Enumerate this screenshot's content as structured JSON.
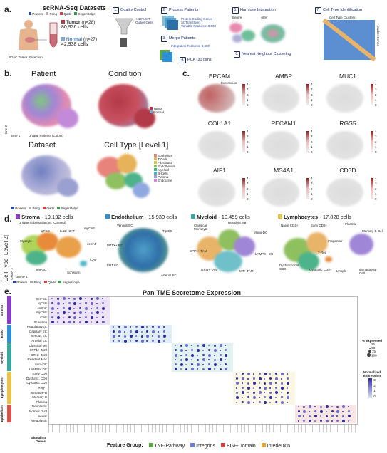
{
  "panels": {
    "a": {
      "letter": "a.",
      "title": "scRNA-Seq Datasets",
      "datasets_legend": [
        "Powers",
        "Peng",
        "Qadir",
        "Segerstolpe"
      ],
      "source_caption": "PDAC Tumor Resection",
      "tumor": {
        "label": "Tumor",
        "n": "(n=28)",
        "cells": "80,936 cells"
      },
      "normal": {
        "label": "Normal",
        "n": "(n=27)",
        "cells": "42,938 cells"
      },
      "steps": [
        {
          "num": "1.",
          "label": "Quality Control"
        },
        {
          "num": "2.",
          "label": "Process Patients"
        },
        {
          "num": "3.",
          "label": "Merge Patients"
        },
        {
          "num": "4.",
          "label": "PCA (30 dims)"
        },
        {
          "num": "5.",
          "label": "Harmony Integration"
        },
        {
          "num": "6.",
          "label": "Nearest Neighbor Clustering"
        },
        {
          "num": "7.",
          "label": "Cell Type Identification"
        }
      ],
      "qc_notes": [
        "< 10% MT",
        "Outlier Cells"
      ],
      "process_notes": [
        "Protein Coding Genes",
        "SCTransform",
        "Variable Features: 8,000"
      ],
      "merge_note": "Integration Features: 8,000",
      "harmony_labels": {
        "before": "Before",
        "after": "After"
      },
      "cluster_label": "Cell Type Clusters",
      "marker_label": "Marker Genes"
    },
    "b": {
      "letter": "b.",
      "titles": [
        "Patient",
        "Condition",
        "Dataset",
        "Cell Type [Level 1]"
      ],
      "axes": {
        "x": "tsne 1",
        "y": "tsne 2"
      },
      "patient_note": "Unique Patients (Colors)",
      "condition_legend": [
        {
          "label": "Tumor",
          "color": "#b23a48"
        },
        {
          "label": "Normal",
          "color": "#7fa7d6"
        }
      ],
      "dataset_legend": [
        "Powers",
        "Peng",
        "Qadir",
        "Segerstolpe"
      ],
      "celltype_legend": [
        {
          "label": "Epithelium",
          "color": "#e8837b"
        },
        {
          "label": "T-Cells",
          "color": "#e6b25a"
        },
        {
          "label": "Fibroblast",
          "color": "#c9c34e"
        },
        {
          "label": "Endothelium",
          "color": "#8fc05f"
        },
        {
          "label": "Myeloid",
          "color": "#4db38a"
        },
        {
          "label": "B-Cells",
          "color": "#4bb6c9"
        },
        {
          "label": "Plasma",
          "color": "#8fa8e0"
        },
        {
          "label": "Endocrine",
          "color": "#d58ad8"
        }
      ]
    },
    "c": {
      "letter": "c.",
      "genes": [
        "EPCAM",
        "AMBP",
        "MUC1",
        "COL1A1",
        "PECAM1",
        "RGS5",
        "AIF1",
        "MS4A1",
        "CD3D"
      ],
      "expression_label": "Expression",
      "ticks": [
        "4",
        "3",
        "2",
        "1",
        "0"
      ]
    },
    "d": {
      "letter": "d.",
      "ylabel": "Cell Type [Level 2]",
      "xaxis": "UMAP 1",
      "yaxis": "UMAP 2",
      "dataset_legend": [
        "Powers",
        "Peng",
        "Qadir",
        "Segerstolpe"
      ],
      "groups": [
        {
          "name": "Stroma",
          "count": "19,132 cells",
          "color": "#8a3fc9"
        },
        {
          "name": "Endothelium",
          "count": "15,930 cells",
          "color": "#2f8fd6"
        },
        {
          "name": "Myeloid",
          "count": "10,459 cells",
          "color": "#3aa6a0"
        },
        {
          "name": "Lymphocytes",
          "count": "17,828 cells",
          "color": "#e8c34a"
        }
      ],
      "stroma_note": "Unique Subpopulations (Colored)",
      "stroma_labels": [
        "qPSC",
        "IL11+ CAF",
        "myCAF",
        "Myocyte",
        "csCAF",
        "iCAF",
        "smPSC",
        "Schwann"
      ],
      "endo_labels": [
        "Venous EC",
        "Tip EC",
        "MT1X+ EC",
        "EHT EC",
        "Arterial EC"
      ],
      "myeloid_labels": [
        "Classical Monocyte",
        "Resident Mϕ",
        "Mono-DC",
        "SPP1+ TAM",
        "LAMP3+ DC",
        "GRN+ TAM",
        "MT+ TAM"
      ],
      "lymph_labels": [
        "Naive CD4+",
        "Early CD8+",
        "Plasma",
        "Memory B-Cell",
        "Progenitor",
        "T-Reg",
        "Dysfunctional CD8+",
        "Cytotoxic CD8+",
        "Lymph",
        "Immature B-Cell"
      ]
    },
    "e": {
      "letter": "e.",
      "title": "Pan-TME Secretome Expression",
      "groups": [
        {
          "name": "Stroma",
          "color": "#8a3fc9",
          "rows": [
            "smPSC",
            "qPSC",
            "csCAF",
            "myCAF",
            "iCAF",
            "Schwann"
          ]
        },
        {
          "name": "Endo",
          "color": "#2f8fd6",
          "rows": [
            "RegulatoryEC",
            "Capillary EC",
            "Venous EC",
            "Arterial EC"
          ]
        },
        {
          "name": "Myeloid",
          "color": "#3aa6a0",
          "rows": [
            "Classical Mϕ",
            "SPP1+ TAM",
            "GRN+ TAM",
            "Resident Mac",
            "Imm-DC",
            "LAMP3+ DC"
          ]
        },
        {
          "name": "Lymphocytes",
          "color": "#e8c34a",
          "rows": [
            "Early CD8",
            "Dysfunct. CD8",
            "Cytotoxic CD8",
            "Reg-T",
            "Immature-B",
            "Memory-B",
            "Plasma"
          ]
        },
        {
          "name": "Epithelium",
          "color": "#d9544d",
          "rows": [
            "Neoplastic",
            "Normal Duct",
            "Acinar",
            "Metaplastic"
          ]
        }
      ],
      "xlabel": "Signaling Genes",
      "size_legend": {
        "title": "% Expressed",
        "values": [
          "25",
          "50",
          "75",
          "100"
        ]
      },
      "color_legend": {
        "title": "Normalized Expression",
        "ticks": [
          "3",
          "2",
          "1",
          "0"
        ]
      },
      "feature_group_label": "Feature Group:",
      "feature_groups": [
        {
          "label": "TNF-Pathway",
          "color": "#5aa845"
        },
        {
          "label": "Integrins",
          "color": "#6f7fd6"
        },
        {
          "label": "EGF-Domain",
          "color": "#c94545"
        },
        {
          "label": "Interleukin",
          "color": "#e2a83a"
        }
      ]
    }
  }
}
